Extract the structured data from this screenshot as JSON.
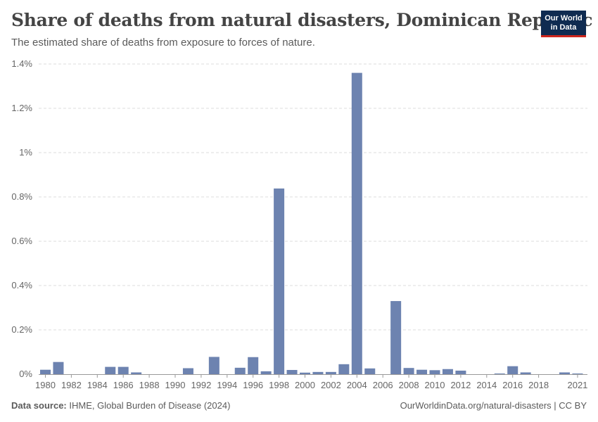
{
  "header": {
    "title": "Share of deaths from natural disasters, Dominican Republic",
    "subtitle": "The estimated share of deaths from exposure to forces of nature."
  },
  "logo": {
    "line1": "Our World",
    "line2": "in Data"
  },
  "footer": {
    "source_label": "Data source:",
    "source_text": "IHME, Global Burden of Disease (2024)",
    "url": "OurWorldinData.org/natural-disasters | CC BY"
  },
  "colors": {
    "bar": "#6d83b0",
    "grid": "#dddddd",
    "axis": "#999999"
  },
  "chart_data": {
    "type": "bar",
    "title": "Share of deaths from natural disasters, Dominican Republic",
    "xlabel": "",
    "ylabel": "",
    "unit": "%",
    "ylim": [
      0,
      1.4
    ],
    "yticks": [
      {
        "value": 0,
        "label": "0%"
      },
      {
        "value": 0.2,
        "label": "0.2%"
      },
      {
        "value": 0.4,
        "label": "0.4%"
      },
      {
        "value": 0.6,
        "label": "0.6%"
      },
      {
        "value": 0.8,
        "label": "0.8%"
      },
      {
        "value": 1.0,
        "label": "1%"
      },
      {
        "value": 1.2,
        "label": "1.2%"
      },
      {
        "value": 1.4,
        "label": "1.4%"
      }
    ],
    "xticks": [
      "1980",
      "1982",
      "1984",
      "1986",
      "1988",
      "1990",
      "1992",
      "1994",
      "1996",
      "1998",
      "2000",
      "2002",
      "2004",
      "2006",
      "2008",
      "2010",
      "2012",
      "2014",
      "2016",
      "2018",
      "2021"
    ],
    "categories": [
      "1980",
      "1981",
      "1982",
      "1983",
      "1984",
      "1985",
      "1986",
      "1987",
      "1988",
      "1989",
      "1990",
      "1991",
      "1992",
      "1993",
      "1994",
      "1995",
      "1996",
      "1997",
      "1998",
      "1999",
      "2000",
      "2001",
      "2002",
      "2003",
      "2004",
      "2005",
      "2006",
      "2007",
      "2008",
      "2009",
      "2010",
      "2011",
      "2012",
      "2013",
      "2014",
      "2015",
      "2016",
      "2017",
      "2018",
      "2019",
      "2020",
      "2021"
    ],
    "values": [
      0.02,
      0.055,
      0,
      0,
      0,
      0.033,
      0.033,
      0.008,
      0,
      0,
      0,
      0.027,
      0,
      0.078,
      0,
      0.029,
      0.077,
      0.013,
      0.838,
      0.019,
      0.007,
      0.01,
      0.01,
      0.045,
      1.36,
      0.026,
      0,
      0.33,
      0.028,
      0.02,
      0.018,
      0.023,
      0.016,
      0,
      0,
      0.003,
      0.036,
      0.008,
      0,
      0,
      0.008,
      0.003
    ]
  }
}
